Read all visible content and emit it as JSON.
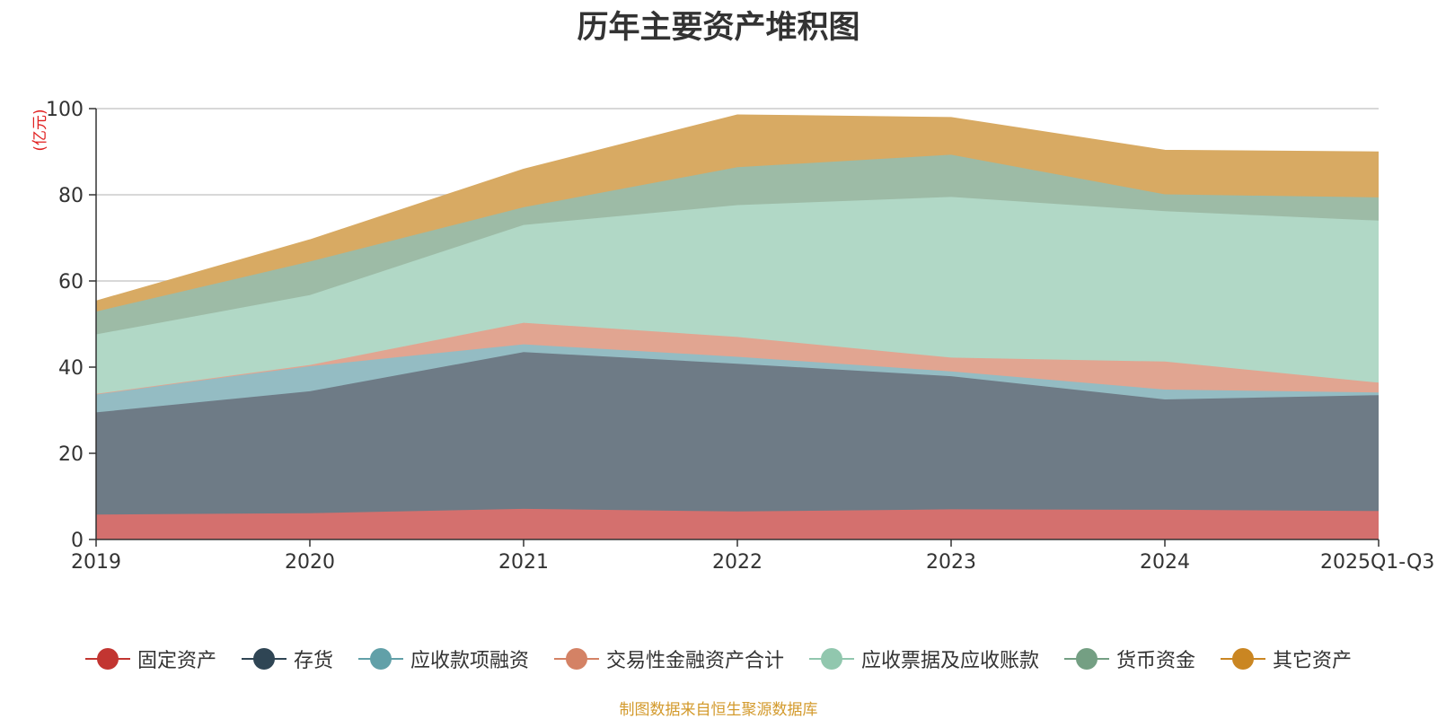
{
  "chart_data": {
    "type": "area",
    "stacked": true,
    "title": "历年主要资产堆积图",
    "ylabel": "(亿元)",
    "xlabel": "",
    "ylim": [
      0,
      100
    ],
    "yticks": [
      0,
      20,
      40,
      60,
      80,
      100
    ],
    "categories": [
      "2019",
      "2020",
      "2021",
      "2022",
      "2023",
      "2024",
      "2025Q1-Q3"
    ],
    "series": [
      {
        "name": "固定资产",
        "color": "#c23531",
        "fill": "#d4706e",
        "values": [
          5.8,
          6.1,
          7.1,
          6.5,
          7.0,
          6.9,
          6.6
        ]
      },
      {
        "name": "存货",
        "color": "#2f4554",
        "fill": "#6e7b86",
        "values": [
          23.7,
          28.3,
          36.4,
          34.3,
          30.9,
          25.6,
          26.9
        ]
      },
      {
        "name": "应收款项融资",
        "color": "#61a0a8",
        "fill": "#94bcc3",
        "values": [
          4.2,
          5.8,
          1.8,
          1.6,
          1.1,
          2.3,
          0.6
        ]
      },
      {
        "name": "交易性金融资产合计",
        "color": "#d48265",
        "fill": "#e1a591",
        "values": [
          0.1,
          0.3,
          5.0,
          4.6,
          3.2,
          6.5,
          2.3
        ]
      },
      {
        "name": "应收票据及应收账款",
        "color": "#91c7ae",
        "fill": "#b1d8c6",
        "values": [
          13.8,
          16.2,
          22.7,
          30.6,
          37.3,
          34.9,
          37.6
        ]
      },
      {
        "name": "货币资金",
        "color": "#749f83",
        "fill": "#9dbba6",
        "values": [
          5.3,
          7.8,
          4.1,
          8.8,
          9.8,
          3.9,
          5.4
        ]
      },
      {
        "name": "其它资产",
        "color": "#ca8622",
        "fill": "#d8aa63",
        "values": [
          2.4,
          5.0,
          8.8,
          12.1,
          8.6,
          10.2,
          10.5
        ]
      }
    ]
  },
  "source_note": "制图数据来自恒生聚源数据库"
}
